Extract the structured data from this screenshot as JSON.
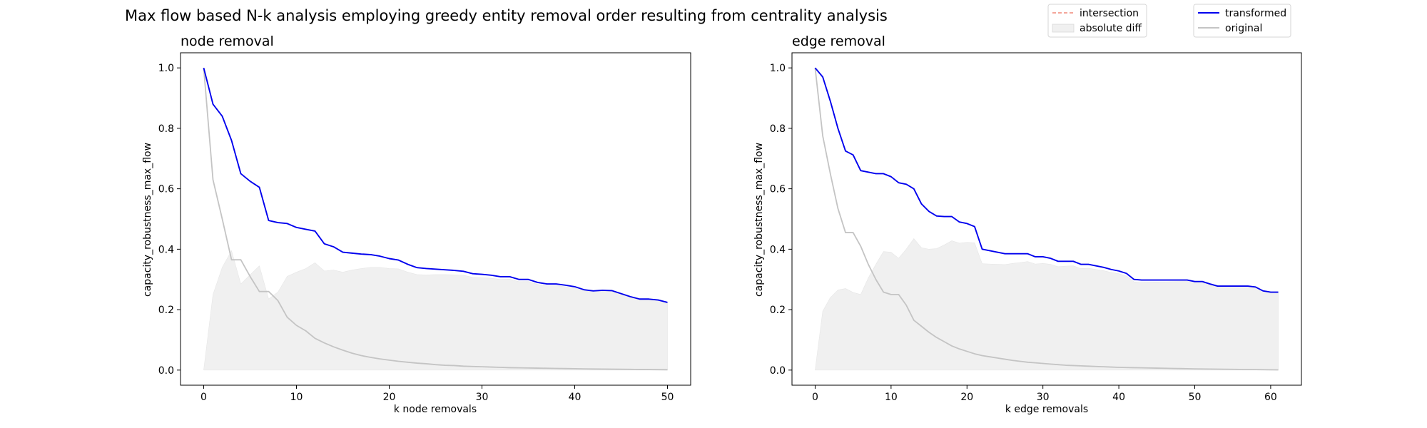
{
  "figure": {
    "title": "Max flow based N-k analysis employing greedy entity removal order resulting from centrality analysis"
  },
  "legend_left": {
    "intersection": "intersection",
    "absolute_diff": "absolute diff"
  },
  "legend_right": {
    "transformed": "transformed",
    "original": "original"
  },
  "colors": {
    "transformed": "#0000ee",
    "original": "#c4c4c4",
    "absolute_diff": "#f0f0f0",
    "intersection": "#f08878"
  },
  "chart_data": [
    {
      "type": "line",
      "title": "node removal",
      "xlabel": "k node removals",
      "ylabel": "capacity_robustness_max_flow",
      "xlim": [
        -2.5,
        52.5
      ],
      "ylim": [
        -0.05,
        1.05
      ],
      "xticks": [
        "0",
        "10",
        "20",
        "30",
        "40",
        "50"
      ],
      "yticks": [
        "0.0",
        "0.2",
        "0.4",
        "0.6",
        "0.8",
        "1.0"
      ],
      "series": [
        {
          "name": "transformed",
          "x": [
            0,
            1,
            2,
            3,
            4,
            5,
            6,
            7,
            8,
            9,
            10,
            11,
            12,
            13,
            14,
            15,
            16,
            17,
            18,
            19,
            20,
            21,
            22,
            23,
            24,
            25,
            26,
            27,
            28,
            29,
            30,
            31,
            32,
            33,
            34,
            35,
            36,
            37,
            38,
            39,
            40,
            41,
            42,
            43,
            44,
            45,
            46,
            47,
            48,
            49,
            50
          ],
          "y": [
            1.0,
            0.88,
            0.84,
            0.76,
            0.65,
            0.625,
            0.605,
            0.495,
            0.488,
            0.485,
            0.472,
            0.466,
            0.46,
            0.418,
            0.408,
            0.39,
            0.387,
            0.384,
            0.382,
            0.377,
            0.369,
            0.364,
            0.35,
            0.339,
            0.336,
            0.334,
            0.332,
            0.33,
            0.327,
            0.319,
            0.317,
            0.314,
            0.309,
            0.309,
            0.3,
            0.3,
            0.29,
            0.285,
            0.285,
            0.281,
            0.276,
            0.266,
            0.262,
            0.264,
            0.263,
            0.253,
            0.243,
            0.235,
            0.235,
            0.232,
            0.224
          ]
        },
        {
          "name": "original",
          "x": [
            0,
            1,
            2,
            3,
            4,
            5,
            6,
            7,
            8,
            9,
            10,
            11,
            12,
            13,
            14,
            15,
            16,
            17,
            18,
            19,
            20,
            21,
            22,
            23,
            24,
            25,
            26,
            27,
            28,
            29,
            30,
            31,
            32,
            33,
            34,
            35,
            36,
            37,
            38,
            39,
            40,
            41,
            42,
            43,
            44,
            45,
            46,
            47,
            48,
            49,
            50
          ],
          "y": [
            1.0,
            0.63,
            0.5,
            0.365,
            0.365,
            0.31,
            0.26,
            0.26,
            0.23,
            0.175,
            0.148,
            0.13,
            0.105,
            0.09,
            0.077,
            0.066,
            0.056,
            0.048,
            0.042,
            0.037,
            0.033,
            0.029,
            0.026,
            0.023,
            0.021,
            0.018,
            0.016,
            0.015,
            0.013,
            0.012,
            0.011,
            0.01,
            0.009,
            0.008,
            0.0075,
            0.007,
            0.0065,
            0.006,
            0.0055,
            0.005,
            0.0045,
            0.004,
            0.0036,
            0.0033,
            0.003,
            0.0027,
            0.0024,
            0.0021,
            0.0018,
            0.0015,
            0.0012
          ]
        },
        {
          "name": "absolute diff",
          "x": [
            0,
            1,
            2,
            3,
            4,
            5,
            6,
            7,
            8,
            9,
            10,
            11,
            12,
            13,
            14,
            15,
            16,
            17,
            18,
            19,
            20,
            21,
            22,
            23,
            24,
            25,
            26,
            27,
            28,
            29,
            30,
            31,
            32,
            33,
            34,
            35,
            36,
            37,
            38,
            39,
            40,
            41,
            42,
            43,
            44,
            45,
            46,
            47,
            48,
            49,
            50
          ],
          "y": [
            0.0,
            0.25,
            0.34,
            0.395,
            0.285,
            0.315,
            0.345,
            0.235,
            0.258,
            0.31,
            0.324,
            0.336,
            0.355,
            0.328,
            0.331,
            0.324,
            0.331,
            0.336,
            0.34,
            0.34,
            0.336,
            0.335,
            0.324,
            0.316,
            0.315,
            0.316,
            0.316,
            0.315,
            0.314,
            0.307,
            0.306,
            0.304,
            0.3,
            0.301,
            0.2925,
            0.293,
            0.2835,
            0.279,
            0.2795,
            0.276,
            0.2715,
            0.262,
            0.2584,
            0.2607,
            0.26,
            0.2503,
            0.2406,
            0.2329,
            0.2332,
            0.2305,
            0.2228
          ]
        }
      ]
    },
    {
      "type": "line",
      "title": "edge removal",
      "xlabel": "k edge removals",
      "ylabel": "capacity_robustness_max_flow",
      "xlim": [
        -3.05,
        64.05
      ],
      "ylim": [
        -0.05,
        1.05
      ],
      "xticks": [
        "0",
        "10",
        "20",
        "30",
        "40",
        "50",
        "60"
      ],
      "yticks": [
        "0.0",
        "0.2",
        "0.4",
        "0.6",
        "0.8",
        "1.0"
      ],
      "series": [
        {
          "name": "transformed",
          "x": [
            0,
            1,
            2,
            3,
            4,
            5,
            6,
            7,
            8,
            9,
            10,
            11,
            12,
            13,
            14,
            15,
            16,
            17,
            18,
            19,
            20,
            21,
            22,
            23,
            24,
            25,
            26,
            27,
            28,
            29,
            30,
            31,
            32,
            33,
            34,
            35,
            36,
            37,
            38,
            39,
            40,
            41,
            42,
            43,
            44,
            45,
            46,
            47,
            48,
            49,
            50,
            51,
            52,
            53,
            54,
            55,
            56,
            57,
            58,
            59,
            60,
            61
          ],
          "y": [
            1.0,
            0.97,
            0.89,
            0.8,
            0.725,
            0.712,
            0.66,
            0.655,
            0.65,
            0.65,
            0.64,
            0.62,
            0.615,
            0.6,
            0.55,
            0.525,
            0.51,
            0.508,
            0.508,
            0.49,
            0.485,
            0.475,
            0.4,
            0.395,
            0.39,
            0.385,
            0.385,
            0.385,
            0.385,
            0.375,
            0.375,
            0.37,
            0.36,
            0.36,
            0.36,
            0.35,
            0.35,
            0.345,
            0.34,
            0.333,
            0.328,
            0.32,
            0.3,
            0.298,
            0.298,
            0.298,
            0.298,
            0.298,
            0.298,
            0.298,
            0.293,
            0.293,
            0.285,
            0.278,
            0.278,
            0.278,
            0.278,
            0.278,
            0.275,
            0.262,
            0.258,
            0.258
          ]
        },
        {
          "name": "original",
          "x": [
            0,
            1,
            2,
            3,
            4,
            5,
            6,
            7,
            8,
            9,
            10,
            11,
            12,
            13,
            14,
            15,
            16,
            17,
            18,
            19,
            20,
            21,
            22,
            23,
            24,
            25,
            26,
            27,
            28,
            29,
            30,
            31,
            32,
            33,
            34,
            35,
            36,
            37,
            38,
            39,
            40,
            41,
            42,
            43,
            44,
            45,
            46,
            47,
            48,
            49,
            50,
            51,
            52,
            53,
            54,
            55,
            56,
            57,
            58,
            59,
            60,
            61
          ],
          "y": [
            1.0,
            0.775,
            0.65,
            0.535,
            0.455,
            0.455,
            0.41,
            0.35,
            0.3,
            0.258,
            0.25,
            0.25,
            0.215,
            0.165,
            0.145,
            0.125,
            0.108,
            0.094,
            0.08,
            0.07,
            0.062,
            0.054,
            0.048,
            0.044,
            0.04,
            0.036,
            0.032,
            0.029,
            0.026,
            0.024,
            0.022,
            0.02,
            0.018,
            0.016,
            0.015,
            0.014,
            0.013,
            0.012,
            0.011,
            0.01,
            0.009,
            0.0085,
            0.008,
            0.0075,
            0.007,
            0.0065,
            0.006,
            0.0055,
            0.005,
            0.0045,
            0.004,
            0.0037,
            0.0034,
            0.0031,
            0.0028,
            0.0025,
            0.0022,
            0.0019,
            0.0016,
            0.0013,
            0.001,
            0.0008
          ]
        },
        {
          "name": "absolute diff",
          "x": [
            0,
            1,
            2,
            3,
            4,
            5,
            6,
            7,
            8,
            9,
            10,
            11,
            12,
            13,
            14,
            15,
            16,
            17,
            18,
            19,
            20,
            21,
            22,
            23,
            24,
            25,
            26,
            27,
            28,
            29,
            30,
            31,
            32,
            33,
            34,
            35,
            36,
            37,
            38,
            39,
            40,
            41,
            42,
            43,
            44,
            45,
            46,
            47,
            48,
            49,
            50,
            51,
            52,
            53,
            54,
            55,
            56,
            57,
            58,
            59,
            60,
            61
          ],
          "y": [
            0.0,
            0.195,
            0.24,
            0.265,
            0.27,
            0.257,
            0.25,
            0.305,
            0.35,
            0.392,
            0.39,
            0.37,
            0.4,
            0.435,
            0.405,
            0.4,
            0.402,
            0.414,
            0.428,
            0.42,
            0.423,
            0.421,
            0.352,
            0.351,
            0.35,
            0.349,
            0.353,
            0.356,
            0.359,
            0.351,
            0.353,
            0.35,
            0.342,
            0.344,
            0.345,
            0.336,
            0.337,
            0.333,
            0.329,
            0.323,
            0.319,
            0.3115,
            0.292,
            0.2905,
            0.291,
            0.2915,
            0.292,
            0.2925,
            0.293,
            0.2935,
            0.289,
            0.2893,
            0.2816,
            0.2749,
            0.2752,
            0.2755,
            0.2758,
            0.2761,
            0.2734,
            0.2607,
            0.257,
            0.2572
          ]
        }
      ]
    }
  ]
}
